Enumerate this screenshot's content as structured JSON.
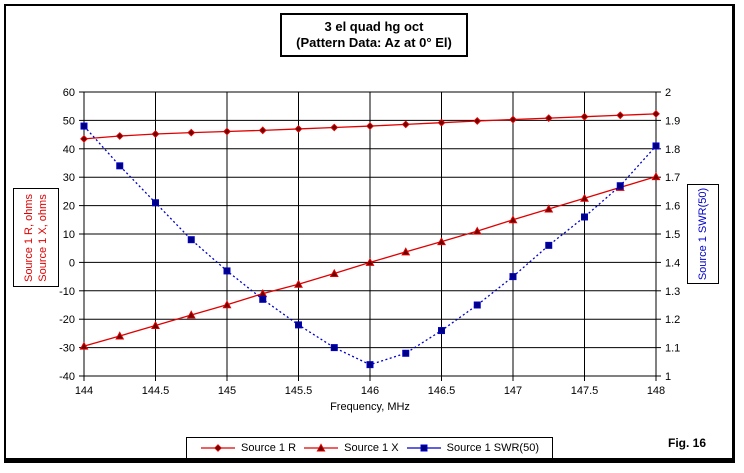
{
  "title": {
    "line1": "3 el quad hg oct",
    "line2": "(Pattern Data: Az at 0° El)"
  },
  "fig_label": "Fig. 16",
  "chart_data": {
    "type": "line",
    "x": [
      144,
      144.25,
      144.5,
      144.75,
      145,
      145.25,
      145.5,
      145.75,
      146,
      146.25,
      146.5,
      146.75,
      147,
      147.25,
      147.5,
      147.75,
      148
    ],
    "xlabel": "Frequency, MHz",
    "x_ticks": [
      "144",
      "144.5",
      "145",
      "145.5",
      "146",
      "146.5",
      "147",
      "147.5",
      "148"
    ],
    "grid": true,
    "left_axis": {
      "label_lines": [
        "Source 1 R,  ohms",
        "Source 1 X,  ohms"
      ],
      "color": "#e00000",
      "min": -40,
      "max": 60,
      "ticks": [
        "60",
        "50",
        "40",
        "30",
        "20",
        "10",
        "0",
        "-10",
        "-20",
        "-30",
        "-40"
      ]
    },
    "right_axis": {
      "label": "Source 1 SWR(50)",
      "color": "#0000cc",
      "min": 1,
      "max": 2,
      "ticks": [
        "2",
        "1.9",
        "1.8",
        "1.7",
        "1.6",
        "1.5",
        "1.4",
        "1.3",
        "1.2",
        "1.1",
        "1"
      ]
    },
    "series": [
      {
        "name": "Source 1 R",
        "axis": "left",
        "color": "#e00000",
        "marker": "diamond",
        "marker_fill": "#6b0000",
        "line_style": "solid",
        "values": [
          43.5,
          44.5,
          45.2,
          45.7,
          46.1,
          46.5,
          47.0,
          47.5,
          48.0,
          48.6,
          49.2,
          49.8,
          50.3,
          50.8,
          51.3,
          51.8,
          52.3
        ]
      },
      {
        "name": "Source 1 X",
        "axis": "left",
        "color": "#e00000",
        "marker": "triangle",
        "marker_fill": "#6b0000",
        "line_style": "solid",
        "values": [
          -29.5,
          -25.9,
          -22.2,
          -18.5,
          -14.9,
          -11.0,
          -7.7,
          -3.9,
          0.0,
          3.7,
          7.3,
          11.0,
          15.0,
          18.8,
          22.6,
          26.4,
          30.2
        ]
      },
      {
        "name": "Source 1 SWR(50)",
        "axis": "right",
        "color": "#0000cc",
        "marker": "square",
        "marker_fill": "#000080",
        "line_style": "dotted",
        "values": [
          1.88,
          1.74,
          1.61,
          1.48,
          1.37,
          1.27,
          1.18,
          1.1,
          1.04,
          1.08,
          1.16,
          1.25,
          1.35,
          1.46,
          1.56,
          1.67,
          1.81
        ]
      }
    ]
  }
}
